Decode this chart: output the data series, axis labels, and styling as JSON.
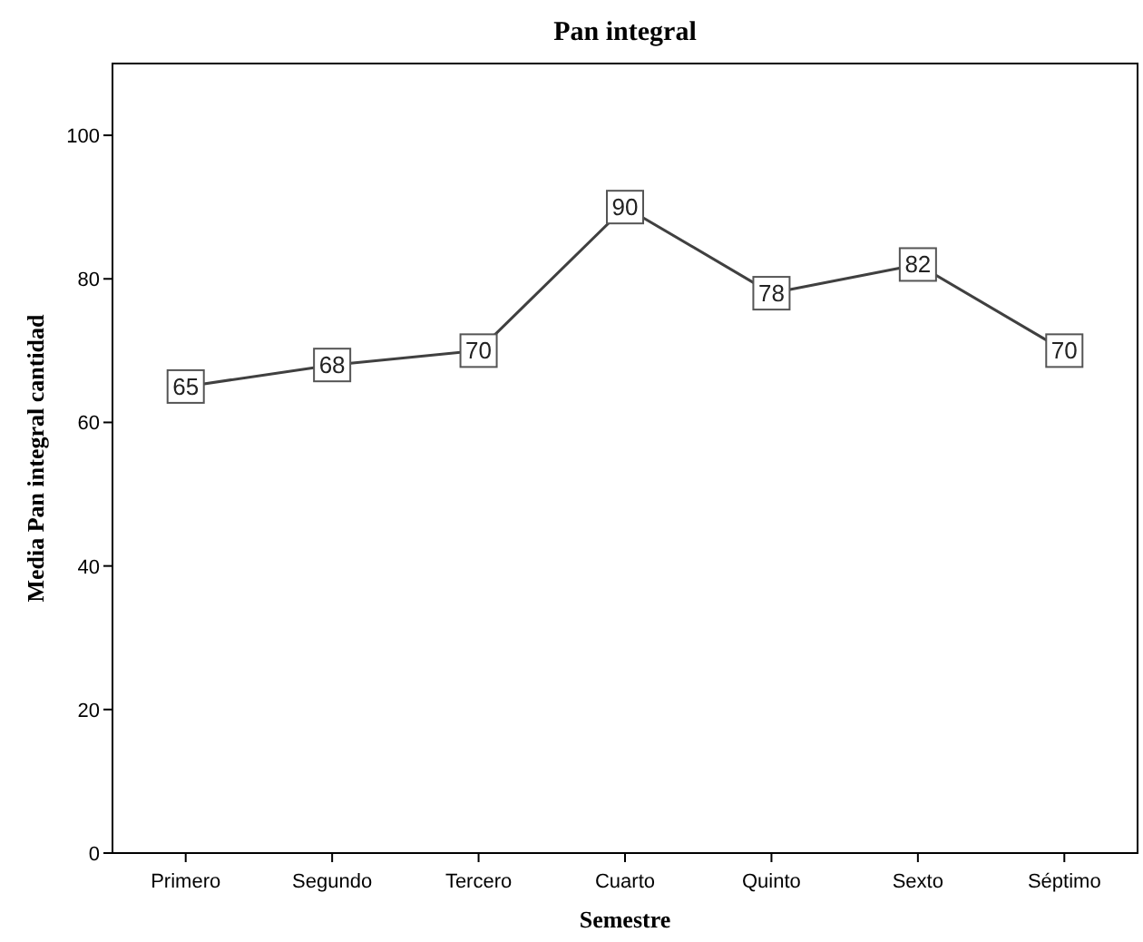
{
  "chart_data": {
    "type": "line",
    "title": "Pan integral",
    "xlabel": "Semestre",
    "ylabel": "Media Pan integral cantidad",
    "categories": [
      "Primero",
      "Segundo",
      "Tercero",
      "Cuarto",
      "Quinto",
      "Sexto",
      "Séptimo"
    ],
    "series": [
      {
        "color": "#404040",
        "values": [
          65,
          68,
          70,
          90,
          78,
          82,
          70
        ]
      }
    ],
    "ylim": [
      0,
      110
    ],
    "yticks": [
      0,
      20,
      40,
      60,
      80,
      100
    ],
    "marker": "square",
    "line_style": "solid",
    "data_labels": true
  }
}
